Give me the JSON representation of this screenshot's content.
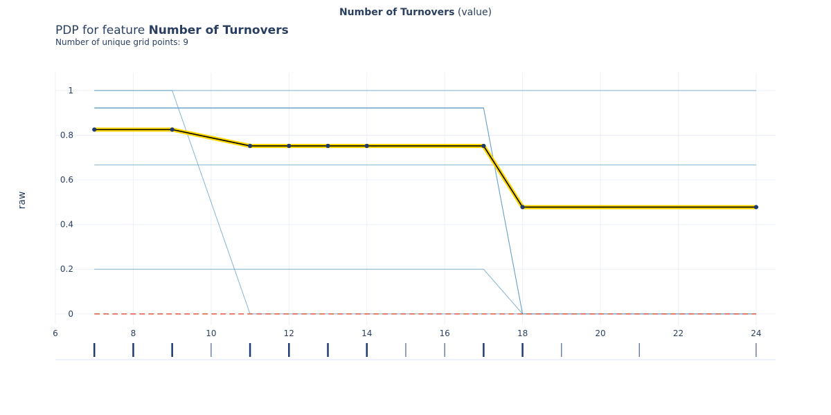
{
  "header": {
    "feature_name": "Number of Turnovers",
    "feature_suffix": "(value)",
    "pdp_prefix": "PDP for feature",
    "subtitle": "Number of unique grid points: 9"
  },
  "chart_data": {
    "type": "line",
    "xlabel": "",
    "ylabel": "raw",
    "xlim": [
      6,
      24.5
    ],
    "ylim": [
      -0.05,
      1.08
    ],
    "x_ticks": [
      6,
      8,
      10,
      12,
      14,
      16,
      18,
      20,
      22,
      24
    ],
    "y_ticks": [
      0,
      0.2,
      0.4,
      0.6,
      0.8,
      1
    ],
    "y_tick_labels": [
      "0",
      "0.2",
      "0.4",
      "0.6",
      "0.8",
      "1"
    ],
    "grid": true,
    "pdp_line": {
      "x": [
        7,
        9,
        11,
        12,
        13,
        14,
        17,
        18,
        24
      ],
      "y": [
        0.825,
        0.825,
        0.752,
        0.752,
        0.752,
        0.752,
        0.752,
        0.478,
        0.478
      ],
      "color": "#000000",
      "band_color": "#ffd700"
    },
    "ice_lines": [
      {
        "x": [
          7,
          24
        ],
        "y": [
          1,
          1
        ]
      },
      {
        "x": [
          7,
          9,
          11,
          24
        ],
        "y": [
          1,
          1,
          0,
          0
        ]
      },
      {
        "x": [
          7,
          17,
          18,
          24
        ],
        "y": [
          0.923,
          0.923,
          0,
          0
        ]
      },
      {
        "x": [
          7,
          17,
          18,
          24
        ],
        "y": [
          0.92,
          0.92,
          0,
          0
        ]
      },
      {
        "x": [
          7,
          24
        ],
        "y": [
          0.667,
          0.667
        ]
      },
      {
        "x": [
          7,
          17,
          18,
          24
        ],
        "y": [
          0.2,
          0.2,
          0,
          0
        ]
      }
    ],
    "ice_color": "#5b9bc4",
    "zero_line": {
      "y": 0,
      "color": "#e0553f"
    },
    "rug_x": [
      7,
      8,
      9,
      10,
      11,
      12,
      13,
      14,
      15,
      16,
      17,
      18,
      19,
      21,
      24
    ],
    "rug_heavy": [
      7,
      8,
      9,
      11,
      12,
      13,
      14,
      17,
      18
    ],
    "rug_color": "#1f3b73"
  }
}
